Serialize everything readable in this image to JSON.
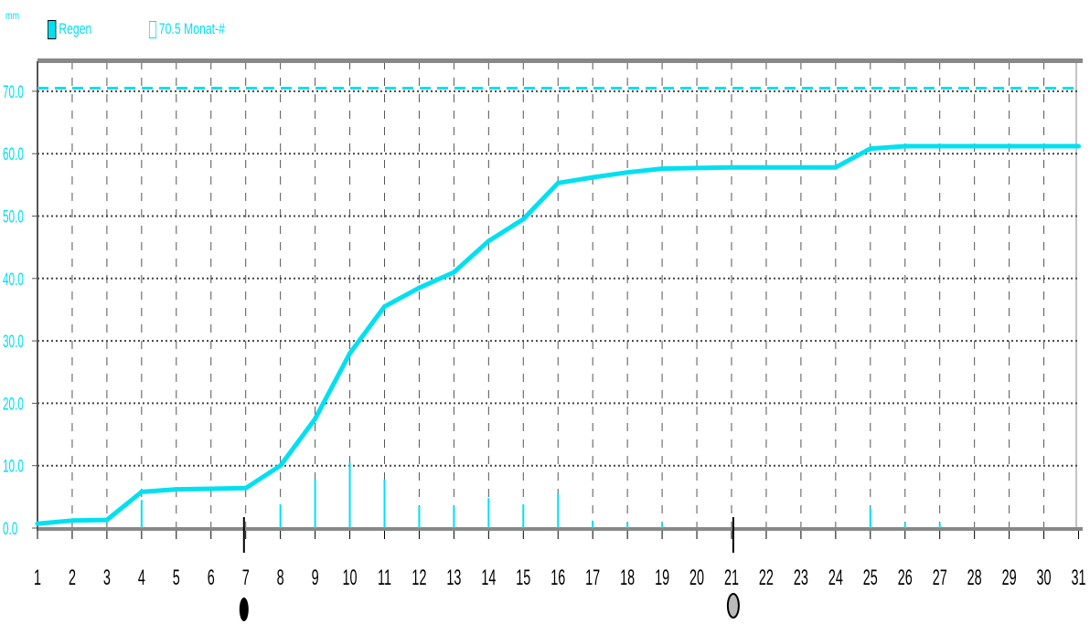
{
  "chart_data": {
    "type": "line",
    "ylabel": "mm",
    "legend": [
      {
        "name": "Regen",
        "color": "#00e0f0",
        "marker": "filled"
      },
      {
        "name": "70.5 Monat-#",
        "color": "#00e0f0",
        "marker": "hollow"
      }
    ],
    "legend_position": "top-left",
    "x": [
      1,
      2,
      3,
      4,
      5,
      6,
      7,
      8,
      9,
      10,
      11,
      12,
      13,
      14,
      15,
      16,
      17,
      18,
      19,
      20,
      21,
      22,
      23,
      24,
      25,
      26,
      27,
      28,
      29,
      30,
      31
    ],
    "x_tick_labels": [
      "1",
      "2",
      "3",
      "4",
      "5",
      "6",
      "7",
      "8",
      "9",
      "10",
      "11",
      "12",
      "13",
      "14",
      "15",
      "16",
      "17",
      "18",
      "19",
      "20",
      "21",
      "22",
      "23",
      "24",
      "25",
      "26",
      "27",
      "28",
      "29",
      "30",
      "31"
    ],
    "ylim": [
      0,
      75
    ],
    "y_tick_labels": [
      "0.0",
      "10.0",
      "20.0",
      "30.0",
      "40.0",
      "50.0",
      "60.0",
      "70.0"
    ],
    "reference_line": {
      "name": "70.5 Monat-#",
      "value": 70.5,
      "style": "dashed"
    },
    "series": [
      {
        "name": "Regen",
        "kind": "cumulative",
        "values": [
          0.7,
          1.2,
          1.3,
          5.8,
          6.2,
          6.3,
          6.4,
          10,
          17.5,
          28,
          35.5,
          38.5,
          41,
          46,
          49.5,
          55.3,
          56.2,
          57,
          57.6,
          57.7,
          57.8,
          57.8,
          57.8,
          57.8,
          60.8,
          61.2,
          61.2,
          61.2,
          61.2,
          61.2,
          61.2
        ]
      },
      {
        "name": "Regen",
        "kind": "daily",
        "values": [
          0,
          0,
          0,
          4.5,
          0,
          0,
          0,
          3.8,
          7.8,
          10.5,
          7.8,
          3.5,
          3.5,
          4.8,
          3.8,
          5.5,
          1.2,
          0.8,
          0.8,
          0,
          0,
          0,
          0,
          0,
          3.2,
          0.8,
          0.8,
          0,
          0,
          0,
          0
        ]
      }
    ],
    "grid": true,
    "moon_phases": [
      {
        "day": 6.95,
        "phase": "new-moon"
      },
      {
        "day": 21.05,
        "phase": "full-moon"
      }
    ]
  }
}
